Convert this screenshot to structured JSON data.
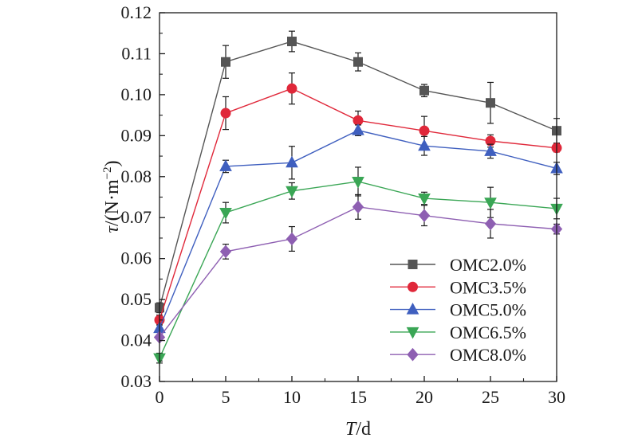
{
  "chart_data": {
    "type": "line",
    "x": [
      0,
      5,
      10,
      15,
      20,
      25,
      30
    ],
    "xlabel": {
      "var": "T",
      "unit": "/d"
    },
    "ylabel": {
      "var": "τ",
      "unit": "/(N·m",
      "sup": "−2",
      "close": ")"
    },
    "xlim": [
      0,
      30
    ],
    "ylim": [
      0.03,
      0.12
    ],
    "xticks": [
      "0",
      "5",
      "10",
      "15",
      "20",
      "25",
      "30"
    ],
    "yticks": [
      "0.03",
      "0.04",
      "0.05",
      "0.06",
      "0.07",
      "0.08",
      "0.09",
      "0.10",
      "0.11",
      "0.12"
    ],
    "grid": false,
    "legend_position": "right-center",
    "series": [
      {
        "name": "OMC2.0%",
        "color": "#555555",
        "marker": "square",
        "values": [
          0.048,
          0.108,
          0.113,
          0.108,
          0.101,
          0.098,
          0.0912
        ],
        "errors": [
          0.0012,
          0.004,
          0.0025,
          0.0022,
          0.0015,
          0.005,
          0.003
        ]
      },
      {
        "name": "OMC3.5%",
        "color": "#e0283a",
        "marker": "circle",
        "values": [
          0.045,
          0.0955,
          0.1015,
          0.0937,
          0.0912,
          0.0887,
          0.087
        ],
        "errors": [
          0.0012,
          0.004,
          0.0038,
          0.0023,
          0.0035,
          0.0015,
          0.001
        ]
      },
      {
        "name": "OMC5.0%",
        "color": "#3f5fbf",
        "marker": "triangle-up",
        "values": [
          0.043,
          0.0825,
          0.0834,
          0.0913,
          0.0875,
          0.0862,
          0.082
        ],
        "errors": [
          0.0008,
          0.0015,
          0.004,
          0.0013,
          0.0023,
          0.0017,
          0.0015
        ]
      },
      {
        "name": "OMC6.5%",
        "color": "#3aa655",
        "marker": "triangle-down",
        "values": [
          0.0357,
          0.0712,
          0.0765,
          0.0788,
          0.0747,
          0.0737,
          0.0722
        ],
        "errors": [
          0.0012,
          0.0025,
          0.002,
          0.0035,
          0.0015,
          0.0037,
          0.0025
        ]
      },
      {
        "name": "OMC8.0%",
        "color": "#8e5fb2",
        "marker": "diamond",
        "values": [
          0.0408,
          0.0617,
          0.0648,
          0.0726,
          0.0705,
          0.0685,
          0.0672
        ],
        "errors": [
          0.0005,
          0.0018,
          0.003,
          0.003,
          0.0025,
          0.0035,
          0.0012
        ]
      }
    ]
  }
}
